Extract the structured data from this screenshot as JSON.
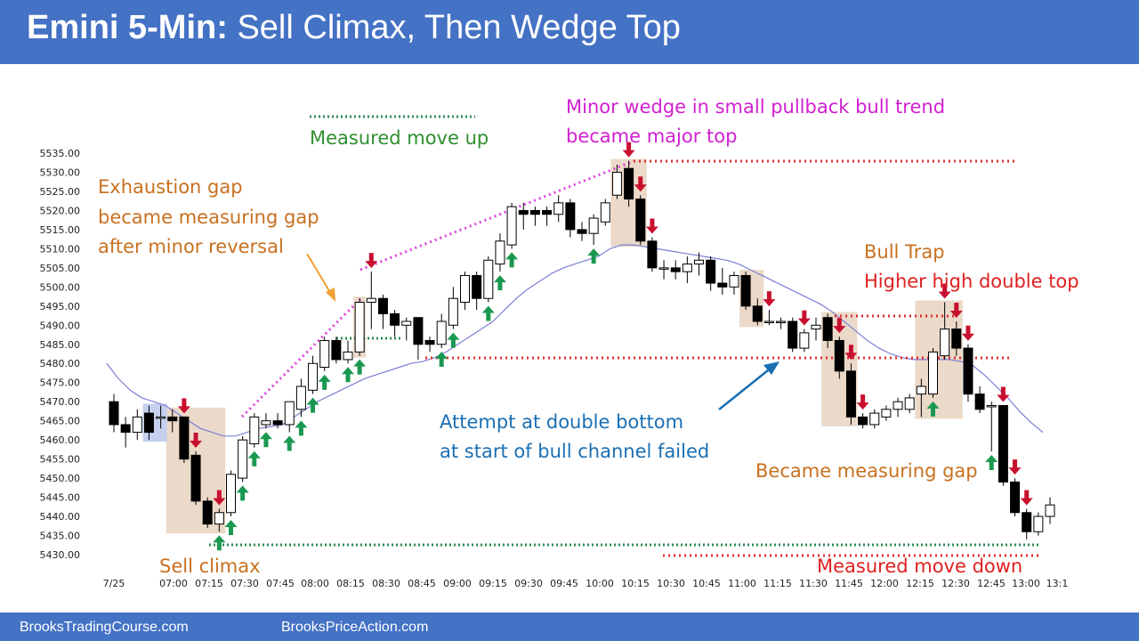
{
  "header": {
    "title_bold": "Emini 5-Min:",
    "title_rest": "Sell Climax, Then Wedge Top"
  },
  "footer": {
    "left_link": "BrooksTradingCourse.com",
    "right_link": "BrooksPriceAction.com"
  },
  "colors": {
    "header_bg": "#4472c4",
    "bull_arrow": "#1a9850",
    "bear_arrow": "#c8102e",
    "highlight": "#e8d2c0",
    "blue_box": "#c5d0ee",
    "ema": "#7b7fd6",
    "green_dots": "#2e8b57",
    "red_dots": "#e03030",
    "magenta": "#e040e0",
    "orange_text": "#c87020",
    "red_text": "#e02020",
    "magenta_text": "#d020d0",
    "green_text": "#2f8f2f",
    "blue_text": "#1a6fb3"
  },
  "annotations": {
    "measured_move_up": "Measured move up",
    "minor_wedge_1": "Minor wedge in small pullback bull trend",
    "minor_wedge_2": "became major top",
    "exhaustion_1": "Exhaustion gap",
    "exhaustion_2": "became measuring gap",
    "exhaustion_3": "after minor reversal",
    "bull_trap_1": "Bull Trap",
    "bull_trap_2": "Higher high double top",
    "attempt_1": "Attempt at double bottom",
    "attempt_2": "at start of bull channel failed",
    "became_measuring_gap": "Became measuring gap",
    "sell_climax": "Sell climax",
    "measured_move_down": "Measured move down"
  },
  "chart_data": {
    "type": "candlestick",
    "y_ticks": [
      "5535.00",
      "5530.00",
      "5525.00",
      "5520.00",
      "5515.00",
      "5510.00",
      "5505.00",
      "5500.00",
      "5495.00",
      "5490.00",
      "5485.00",
      "5480.00",
      "5475.00",
      "5470.00",
      "5465.00",
      "5460.00",
      "5455.00",
      "5450.00",
      "5445.00",
      "5440.00",
      "5435.00",
      "5430.00"
    ],
    "ylim": [
      5430,
      5535
    ],
    "x_ticks": [
      "7/25",
      "07:00",
      "07:15",
      "07:30",
      "07:45",
      "08:00",
      "08:15",
      "08:30",
      "08:45",
      "09:00",
      "09:15",
      "09:30",
      "09:45",
      "10:00",
      "10:15",
      "10:30",
      "10:45",
      "11:00",
      "11:15",
      "11:30",
      "11:45",
      "12:00",
      "12:15",
      "12:30",
      "12:45",
      "13:00",
      "13:1"
    ],
    "candles": [
      {
        "o": 5470,
        "h": 5472,
        "l": 5462,
        "c": 5464
      },
      {
        "o": 5464,
        "h": 5466,
        "l": 5458,
        "c": 5462
      },
      {
        "o": 5462,
        "h": 5468,
        "l": 5460,
        "c": 5466
      },
      {
        "o": 5467,
        "h": 5469,
        "l": 5460,
        "c": 5462
      },
      {
        "o": 5466,
        "h": 5469,
        "l": 5463,
        "c": 5466
      },
      {
        "o": 5466,
        "h": 5468,
        "l": 5462,
        "c": 5465
      },
      {
        "o": 5466,
        "h": 5466,
        "l": 5454,
        "c": 5455
      },
      {
        "o": 5456,
        "h": 5457,
        "l": 5443,
        "c": 5444
      },
      {
        "o": 5444,
        "h": 5445,
        "l": 5437,
        "c": 5438
      },
      {
        "o": 5438,
        "h": 5442,
        "l": 5436,
        "c": 5441
      },
      {
        "o": 5441,
        "h": 5452,
        "l": 5440,
        "c": 5451
      },
      {
        "o": 5450,
        "h": 5461,
        "l": 5449,
        "c": 5460
      },
      {
        "o": 5459,
        "h": 5467,
        "l": 5458,
        "c": 5466
      },
      {
        "o": 5464,
        "h": 5467,
        "l": 5463,
        "c": 5465
      },
      {
        "o": 5465,
        "h": 5467,
        "l": 5463,
        "c": 5464
      },
      {
        "o": 5464,
        "h": 5470,
        "l": 5462,
        "c": 5470
      },
      {
        "o": 5468,
        "h": 5476,
        "l": 5466,
        "c": 5474
      },
      {
        "o": 5473,
        "h": 5482,
        "l": 5472,
        "c": 5480
      },
      {
        "o": 5479,
        "h": 5487,
        "l": 5478,
        "c": 5486
      },
      {
        "o": 5486,
        "h": 5487,
        "l": 5480,
        "c": 5481
      },
      {
        "o": 5481,
        "h": 5486,
        "l": 5480,
        "c": 5483
      },
      {
        "o": 5483,
        "h": 5497,
        "l": 5482,
        "c": 5496
      },
      {
        "o": 5496,
        "h": 5504,
        "l": 5489,
        "c": 5497
      },
      {
        "o": 5497,
        "h": 5498,
        "l": 5489,
        "c": 5493
      },
      {
        "o": 5493,
        "h": 5494,
        "l": 5487,
        "c": 5490
      },
      {
        "o": 5490,
        "h": 5492,
        "l": 5486,
        "c": 5491
      },
      {
        "o": 5492,
        "h": 5492,
        "l": 5481,
        "c": 5485
      },
      {
        "o": 5486,
        "h": 5487,
        "l": 5483,
        "c": 5485
      },
      {
        "o": 5485,
        "h": 5493,
        "l": 5484,
        "c": 5491
      },
      {
        "o": 5490,
        "h": 5500,
        "l": 5489,
        "c": 5497
      },
      {
        "o": 5496,
        "h": 5504,
        "l": 5494,
        "c": 5503
      },
      {
        "o": 5503,
        "h": 5504,
        "l": 5494,
        "c": 5497
      },
      {
        "o": 5497,
        "h": 5508,
        "l": 5496,
        "c": 5507
      },
      {
        "o": 5506,
        "h": 5514,
        "l": 5504,
        "c": 5512
      },
      {
        "o": 5511,
        "h": 5522,
        "l": 5510,
        "c": 5521
      },
      {
        "o": 5520,
        "h": 5522,
        "l": 5515,
        "c": 5519
      },
      {
        "o": 5520,
        "h": 5521,
        "l": 5516,
        "c": 5519
      },
      {
        "o": 5520,
        "h": 5521,
        "l": 5516,
        "c": 5519
      },
      {
        "o": 5519,
        "h": 5524,
        "l": 5517,
        "c": 5522
      },
      {
        "o": 5522,
        "h": 5523,
        "l": 5513,
        "c": 5515
      },
      {
        "o": 5515,
        "h": 5517,
        "l": 5512,
        "c": 5514
      },
      {
        "o": 5514,
        "h": 5519,
        "l": 5511,
        "c": 5518
      },
      {
        "o": 5517,
        "h": 5523,
        "l": 5516,
        "c": 5522
      },
      {
        "o": 5524,
        "h": 5532,
        "l": 5523,
        "c": 5530
      },
      {
        "o": 5531,
        "h": 5533,
        "l": 5521,
        "c": 5523
      },
      {
        "o": 5523,
        "h": 5524,
        "l": 5511,
        "c": 5512
      },
      {
        "o": 5512,
        "h": 5513,
        "l": 5504,
        "c": 5505
      },
      {
        "o": 5505,
        "h": 5507,
        "l": 5502,
        "c": 5505
      },
      {
        "o": 5505,
        "h": 5507,
        "l": 5502,
        "c": 5504
      },
      {
        "o": 5504,
        "h": 5508,
        "l": 5501,
        "c": 5506
      },
      {
        "o": 5506,
        "h": 5509,
        "l": 5503,
        "c": 5507
      },
      {
        "o": 5507,
        "h": 5508,
        "l": 5499,
        "c": 5501
      },
      {
        "o": 5501,
        "h": 5505,
        "l": 5498,
        "c": 5500
      },
      {
        "o": 5500,
        "h": 5504,
        "l": 5498,
        "c": 5503
      },
      {
        "o": 5503,
        "h": 5504,
        "l": 5494,
        "c": 5495
      },
      {
        "o": 5495,
        "h": 5497,
        "l": 5490,
        "c": 5491
      },
      {
        "o": 5491,
        "h": 5494,
        "l": 5490,
        "c": 5491
      },
      {
        "o": 5491,
        "h": 5492,
        "l": 5489,
        "c": 5491
      },
      {
        "o": 5491,
        "h": 5492,
        "l": 5483,
        "c": 5484
      },
      {
        "o": 5484,
        "h": 5489,
        "l": 5483,
        "c": 5488
      },
      {
        "o": 5489,
        "h": 5492,
        "l": 5486,
        "c": 5490
      },
      {
        "o": 5492,
        "h": 5493,
        "l": 5484,
        "c": 5486
      },
      {
        "o": 5486,
        "h": 5487,
        "l": 5476,
        "c": 5478
      },
      {
        "o": 5478,
        "h": 5480,
        "l": 5464,
        "c": 5466
      },
      {
        "o": 5466,
        "h": 5467,
        "l": 5463,
        "c": 5464
      },
      {
        "o": 5464,
        "h": 5468,
        "l": 5463,
        "c": 5467
      },
      {
        "o": 5466,
        "h": 5469,
        "l": 5465,
        "c": 5468
      },
      {
        "o": 5468,
        "h": 5471,
        "l": 5466,
        "c": 5470
      },
      {
        "o": 5468,
        "h": 5472,
        "l": 5467,
        "c": 5471
      },
      {
        "o": 5472,
        "h": 5476,
        "l": 5466,
        "c": 5474
      },
      {
        "o": 5472,
        "h": 5484,
        "l": 5471,
        "c": 5483
      },
      {
        "o": 5482,
        "h": 5496,
        "l": 5481,
        "c": 5489
      },
      {
        "o": 5489,
        "h": 5491,
        "l": 5482,
        "c": 5484
      },
      {
        "o": 5484,
        "h": 5485,
        "l": 5470,
        "c": 5472
      },
      {
        "o": 5472,
        "h": 5474,
        "l": 5467,
        "c": 5468
      },
      {
        "o": 5469,
        "h": 5470,
        "l": 5457,
        "c": 5469
      },
      {
        "o": 5469,
        "h": 5469,
        "l": 5448,
        "c": 5449
      },
      {
        "o": 5449,
        "h": 5450,
        "l": 5440,
        "c": 5441
      },
      {
        "o": 5441,
        "h": 5442,
        "l": 5434,
        "c": 5436
      },
      {
        "o": 5436,
        "h": 5441,
        "l": 5435,
        "c": 5440
      },
      {
        "o": 5440,
        "h": 5445,
        "l": 5438,
        "c": 5443
      }
    ],
    "ema": [
      5480,
      5476,
      5473,
      5471,
      5470,
      5469,
      5467,
      5465,
      5463,
      5462,
      5461,
      5461,
      5462,
      5463,
      5463.5,
      5464,
      5466,
      5468,
      5470,
      5471.5,
      5473,
      5474.5,
      5476,
      5477,
      5478,
      5479,
      5480,
      5480.5,
      5481.5,
      5483,
      5485,
      5487,
      5489,
      5491,
      5494,
      5497,
      5499.5,
      5501.5,
      5503.5,
      5505,
      5506,
      5507,
      5508,
      5510,
      5511,
      5511,
      5510.5,
      5510,
      5509.5,
      5509,
      5508.5,
      5508,
      5507.5,
      5507,
      5506,
      5504.5,
      5503,
      5501.5,
      5500,
      5498.5,
      5497,
      5495.5,
      5493.5,
      5491,
      5488.5,
      5486,
      5484,
      5482.5,
      5481.5,
      5481,
      5481,
      5481,
      5481,
      5480.5,
      5479.5,
      5477,
      5474,
      5471,
      5467.5,
      5464.5,
      5462
    ],
    "bull_arrows": [
      9,
      10,
      11,
      12,
      13,
      15,
      16,
      17,
      18,
      20,
      21,
      28,
      29,
      32,
      33,
      34,
      41,
      70,
      75
    ],
    "bear_arrows": [
      6,
      7,
      9,
      22,
      44,
      45,
      46,
      56,
      59,
      62,
      63,
      64,
      71,
      72,
      73,
      76,
      77,
      78
    ],
    "highlight_zones": [
      [
        5,
        9
      ],
      [
        21,
        21
      ],
      [
        43,
        45
      ],
      [
        54,
        55
      ],
      [
        61,
        63
      ],
      [
        69,
        72
      ]
    ],
    "blue_zone": [
      3,
      4
    ]
  }
}
